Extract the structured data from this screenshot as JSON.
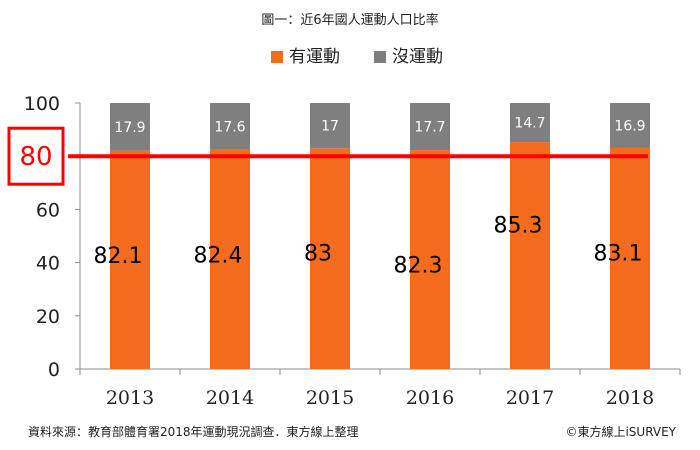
{
  "chart_data": {
    "type": "bar",
    "stacked": true,
    "title": "圖一：近6年國人運動人口比率",
    "categories": [
      "2013",
      "2014",
      "2015",
      "2016",
      "2017",
      "2018"
    ],
    "series": [
      {
        "name": "有運動",
        "values": [
          82.1,
          82.4,
          83,
          82.3,
          85.3,
          83.1
        ],
        "color": "#f56c1e"
      },
      {
        "name": "沒運動",
        "values": [
          17.9,
          17.6,
          17,
          17.7,
          14.7,
          16.9
        ],
        "color": "#7f7f7f"
      }
    ],
    "ylim": [
      0,
      100
    ],
    "yticks": [
      0,
      20,
      40,
      60,
      80,
      100
    ],
    "grid": false,
    "legend": "top-center",
    "reference_line": {
      "value": 80,
      "label": "80",
      "color": "#ff0000"
    },
    "xlabel": "",
    "ylabel": ""
  },
  "footer": {
    "source": "資料來源：教育部體育署2018年運動現況調查．東方線上整理",
    "copyright": "©東方線上iSURVEY"
  }
}
